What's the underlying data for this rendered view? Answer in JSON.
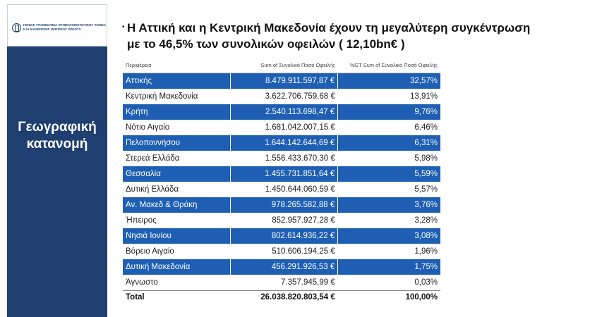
{
  "sidebar": {
    "logo_lines": [
      "ΓΕΝΙΚΗ ΓΡΑΜΜΑΤΕΙΑ ΧΡΗΜΑΤΟΠΙΣΤΩΤΙΚΟΥ ΤΟΜΕΑ",
      "ΚΑΙ ΔΙΑΧΕΙΡΙΣΗΣ ΙΔΙΩΤΙΚΟΥ ΧΡΕΟΥΣ"
    ],
    "title_line1": "Γεωγραφική",
    "title_line2": "κατανομή"
  },
  "headline": {
    "line1": "Η Αττική και η Κεντρική Μακεδονία  έχουν τη μεγαλύτερη συγκέντρωση",
    "line2": "με το 46,5% των συνολικών οφειλών ( 12,10bn€ )"
  },
  "table": {
    "columns": [
      "Περιφέρεια",
      "Sum of Συνολικό Ποσό Οφειλής",
      "%GT Sum of Συνολικό Ποσό Οφειλής"
    ],
    "rows": [
      [
        "Αττικής",
        "8.479.911.597,87 €",
        "32,57%"
      ],
      [
        "Κεντρική Μακεδονία",
        "3.622.706.759,68 €",
        "13,91%"
      ],
      [
        "Κρήτη",
        "2.540.113.698,47 €",
        "9,76%"
      ],
      [
        "Νότιο Αιγαίο",
        "1.681.042.007,15 €",
        "6,46%"
      ],
      [
        "Πελοποννήσου",
        "1.644.142.644,69 €",
        "6,31%"
      ],
      [
        "Στερεά Ελλάδα",
        "1.556.433.670,30 €",
        "5,98%"
      ],
      [
        "Θεσσαλία",
        "1.455.731.851,64 €",
        "5,59%"
      ],
      [
        "Δυτική Ελλάδα",
        "1.450.644.060,59 €",
        "5,57%"
      ],
      [
        "Αν. Μακεδ & Θράκη",
        "978.265.582,88 €",
        "3,76%"
      ],
      [
        "Ήπειρος",
        "852.957.927,28 €",
        "3,28%"
      ],
      [
        "Νησιά Ιονίου",
        "802.614.936,22 €",
        "3,08%"
      ],
      [
        "Βόρειο Αιγαίο",
        "510.606.194,25 €",
        "1,96%"
      ],
      [
        "Δυτική Μακεδονία",
        "456.291.926,53 €",
        "1,75%"
      ],
      [
        "Άγνωστο",
        "7.357.945,99 €",
        "0,03%"
      ]
    ],
    "total": [
      "Total",
      "26.038.820.803,54 €",
      "100,00%"
    ]
  },
  "colors": {
    "sidebar": "#1f3f70",
    "row_highlight": "#1e5fb4"
  }
}
